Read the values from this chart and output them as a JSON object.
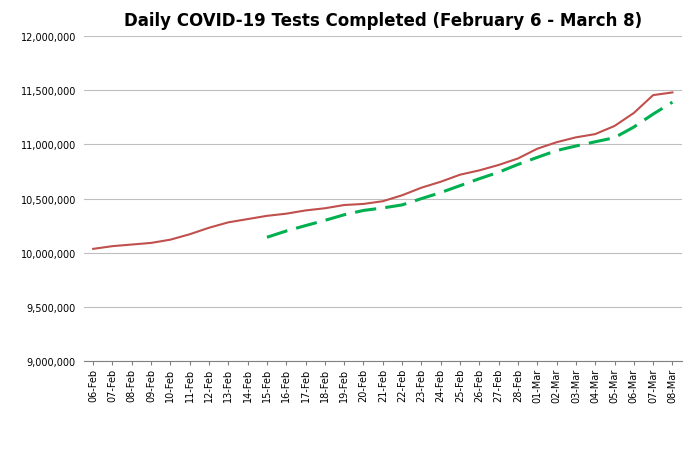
{
  "title": "Daily COVID-19 Tests Completed (February 6 - March 8)",
  "dates": [
    "06-Feb",
    "07-Feb",
    "08-Feb",
    "09-Feb",
    "10-Feb",
    "11-Feb",
    "12-Feb",
    "13-Feb",
    "14-Feb",
    "15-Feb",
    "16-Feb",
    "17-Feb",
    "18-Feb",
    "19-Feb",
    "20-Feb",
    "21-Feb",
    "22-Feb",
    "23-Feb",
    "24-Feb",
    "25-Feb",
    "26-Feb",
    "27-Feb",
    "28-Feb",
    "01-Mar",
    "02-Mar",
    "03-Mar",
    "04-Mar",
    "05-Mar",
    "06-Mar",
    "07-Mar",
    "08-Mar"
  ],
  "daily_tests": [
    10035000,
    10060000,
    10075000,
    10090000,
    10120000,
    10170000,
    10230000,
    10280000,
    10310000,
    10340000,
    10360000,
    10390000,
    10410000,
    10440000,
    10450000,
    10475000,
    10530000,
    10600000,
    10655000,
    10720000,
    10760000,
    10810000,
    10870000,
    10960000,
    11020000,
    11065000,
    11095000,
    11170000,
    11290000,
    11455000,
    11480000
  ],
  "moving_avg": [
    null,
    null,
    null,
    null,
    null,
    null,
    null,
    null,
    null,
    10142000,
    10200000,
    10250000,
    10298000,
    10350000,
    10390000,
    10413000,
    10441000,
    10499000,
    10555000,
    10619000,
    10683000,
    10743000,
    10815000,
    10880000,
    10943000,
    10985000,
    11024000,
    11062000,
    11160000,
    11280000,
    11390000
  ],
  "ylim": [
    9000000,
    12000000
  ],
  "yticks": [
    9000000,
    9500000,
    10000000,
    10500000,
    11000000,
    11500000,
    12000000
  ],
  "line_color": "#c0504d",
  "mavg_color": "#00b050",
  "bg_color": "#ffffff",
  "grid_color": "#bfbfbf",
  "title_fontsize": 12,
  "tick_fontsize": 7
}
